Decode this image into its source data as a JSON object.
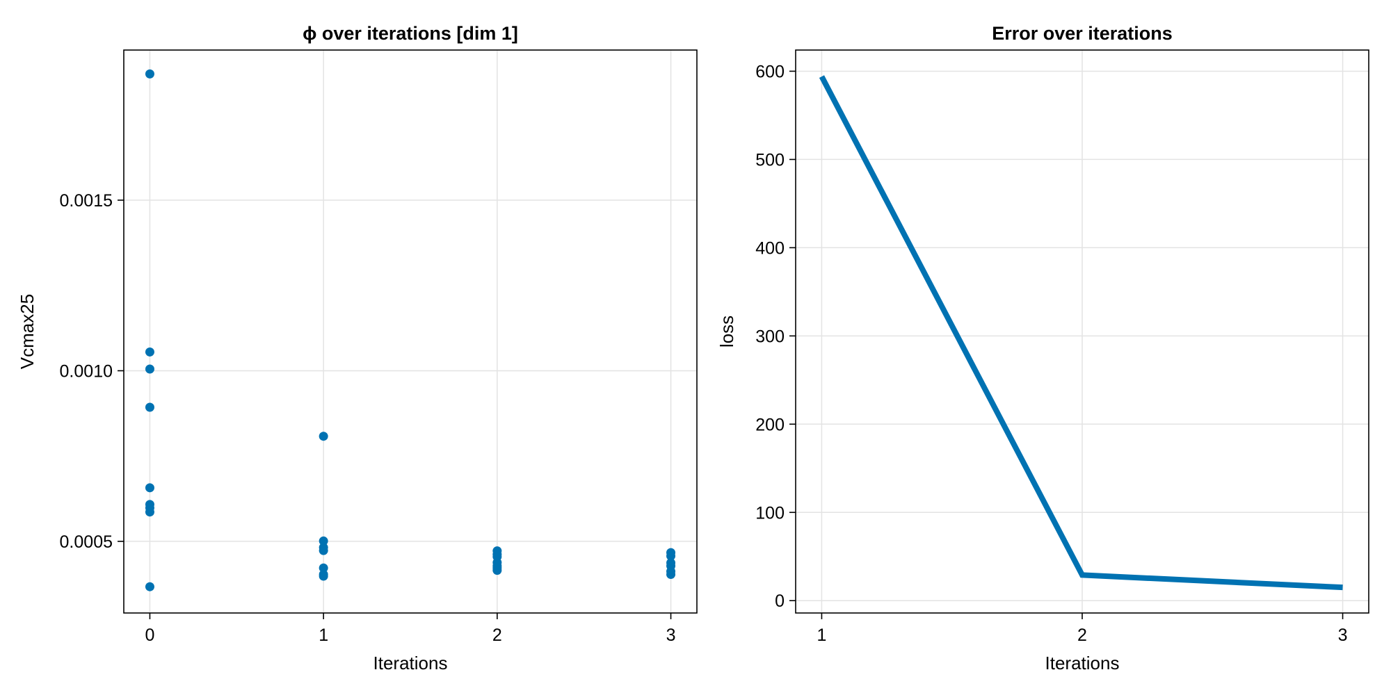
{
  "chart_data": [
    {
      "type": "scatter",
      "title": "ϕ over iterations [dim 1]",
      "xlabel": "Iterations",
      "ylabel": "Vcmax25",
      "xlim": [
        -0.15,
        3.15
      ],
      "ylim": [
        0.00029,
        0.00194
      ],
      "xticks": [
        0,
        1,
        2,
        3
      ],
      "xtick_labels": [
        "0",
        "1",
        "2",
        "3"
      ],
      "yticks": [
        0.0005,
        0.001,
        0.0015
      ],
      "ytick_labels": [
        "0.0005",
        "0.0010",
        "0.0015"
      ],
      "grid": true,
      "color": "#0072b2",
      "points": [
        {
          "x": 0,
          "y": 0.00187
        },
        {
          "x": 0,
          "y": 0.001055
        },
        {
          "x": 0,
          "y": 0.001005
        },
        {
          "x": 0,
          "y": 0.000893
        },
        {
          "x": 0,
          "y": 0.000657
        },
        {
          "x": 0,
          "y": 0.000608
        },
        {
          "x": 0,
          "y": 0.000598
        },
        {
          "x": 0,
          "y": 0.000586
        },
        {
          "x": 0,
          "y": 0.000367
        },
        {
          "x": 1,
          "y": 0.000808
        },
        {
          "x": 1,
          "y": 0.000501
        },
        {
          "x": 1,
          "y": 0.000482
        },
        {
          "x": 1,
          "y": 0.000473
        },
        {
          "x": 1,
          "y": 0.000422
        },
        {
          "x": 1,
          "y": 0.000403
        },
        {
          "x": 1,
          "y": 0.000398
        },
        {
          "x": 2,
          "y": 0.000472
        },
        {
          "x": 2,
          "y": 0.000462
        },
        {
          "x": 2,
          "y": 0.000455
        },
        {
          "x": 2,
          "y": 0.000438
        },
        {
          "x": 2,
          "y": 0.000428
        },
        {
          "x": 2,
          "y": 0.000422
        },
        {
          "x": 2,
          "y": 0.000415
        },
        {
          "x": 3,
          "y": 0.000467
        },
        {
          "x": 3,
          "y": 0.000457
        },
        {
          "x": 3,
          "y": 0.000437
        },
        {
          "x": 3,
          "y": 0.000428
        },
        {
          "x": 3,
          "y": 0.000412
        },
        {
          "x": 3,
          "y": 0.000403
        }
      ]
    },
    {
      "type": "line",
      "title": "Error over iterations",
      "xlabel": "Iterations",
      "ylabel": "loss",
      "xlim": [
        0.9,
        3.1
      ],
      "ylim": [
        -14,
        624
      ],
      "xticks": [
        1,
        2,
        3
      ],
      "xtick_labels": [
        "1",
        "2",
        "3"
      ],
      "yticks": [
        0,
        100,
        200,
        300,
        400,
        500,
        600
      ],
      "ytick_labels": [
        "0",
        "100",
        "200",
        "300",
        "400",
        "500",
        "600"
      ],
      "grid": true,
      "color": "#0072b2",
      "x": [
        1,
        2,
        3
      ],
      "y": [
        594,
        29,
        15
      ]
    }
  ]
}
